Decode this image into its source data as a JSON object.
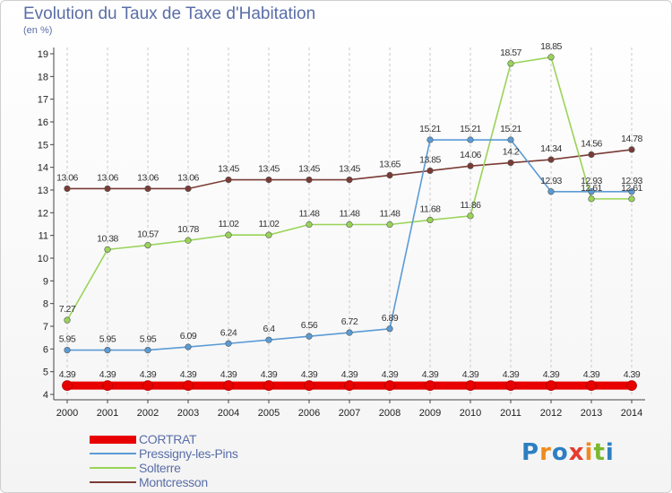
{
  "title": "Evolution du Taux de Taxe d'Habitation",
  "unit": "(en %)",
  "logo": {
    "text": "Proxiti",
    "colors": [
      "#2d7fc1",
      "#f08a1c",
      "#2d7fc1",
      "#e53b2e",
      "#f08a1c",
      "#79b830",
      "#2d7fc1"
    ]
  },
  "chart_data": {
    "type": "line",
    "x": [
      "2000",
      "2001",
      "2002",
      "2003",
      "2004",
      "2005",
      "2006",
      "2007",
      "2008",
      "2009",
      "2010",
      "2011",
      "2012",
      "2013",
      "2014"
    ],
    "ylim": [
      4,
      19
    ],
    "yticks": [
      "4",
      "5",
      "6",
      "7",
      "8",
      "9",
      "10",
      "11",
      "12",
      "13",
      "14",
      "15",
      "16",
      "17",
      "18",
      "19"
    ],
    "grid": "vertical dashed",
    "legend_position": "bottom-left",
    "series": [
      {
        "name": "CORTRAT",
        "color": "#e80000",
        "values": [
          4.39,
          4.39,
          4.39,
          4.39,
          4.39,
          4.39,
          4.39,
          4.39,
          4.39,
          4.39,
          4.39,
          4.39,
          4.39,
          4.39,
          4.39
        ],
        "labels": [
          "4.39",
          "4.39",
          "4.39",
          "4.39",
          "4.39",
          "4.39",
          "4.39",
          "4.39",
          "4.39",
          "4.39",
          "4.39",
          "4.39",
          "4.39",
          "4.39",
          "4.39"
        ]
      },
      {
        "name": "Pressigny-les-Pins",
        "color": "#5b9bd5",
        "values": [
          5.95,
          5.95,
          5.95,
          6.09,
          6.24,
          6.4,
          6.56,
          6.72,
          6.89,
          15.21,
          15.21,
          15.21,
          12.93,
          12.93,
          12.93
        ],
        "labels": [
          "5.95",
          "5.95",
          "5.95",
          "6.09",
          "6.24",
          "6.4",
          "6.56",
          "6.72",
          "6.89",
          "15.21",
          "15.21",
          "15.21",
          "12.93",
          "12.93",
          "12.93"
        ]
      },
      {
        "name": "Solterre",
        "color": "#99d458",
        "values": [
          7.27,
          10.38,
          10.57,
          10.78,
          11.02,
          11.02,
          11.48,
          11.48,
          11.48,
          11.68,
          11.86,
          18.57,
          18.85,
          12.61,
          12.61
        ],
        "labels": [
          "7.27",
          "10.38",
          "10.57",
          "10.78",
          "11.02",
          "11.02",
          "11.48",
          "11.48",
          "11.48",
          "11.68",
          "11.86",
          "18.57",
          "18.85",
          "12.61",
          "12.61"
        ]
      },
      {
        "name": "Montcresson",
        "color": "#7a3b35",
        "values": [
          13.06,
          13.06,
          13.06,
          13.06,
          13.45,
          13.45,
          13.45,
          13.45,
          13.65,
          13.85,
          14.06,
          14.2,
          14.34,
          14.56,
          14.78
        ],
        "labels": [
          "13.06",
          "13.06",
          "13.06",
          "13.06",
          "13.45",
          "13.45",
          "13.45",
          "13.45",
          "13.65",
          "13.85",
          "14.06",
          "14.2",
          "14.34",
          "14.56",
          "14.78"
        ]
      }
    ]
  }
}
